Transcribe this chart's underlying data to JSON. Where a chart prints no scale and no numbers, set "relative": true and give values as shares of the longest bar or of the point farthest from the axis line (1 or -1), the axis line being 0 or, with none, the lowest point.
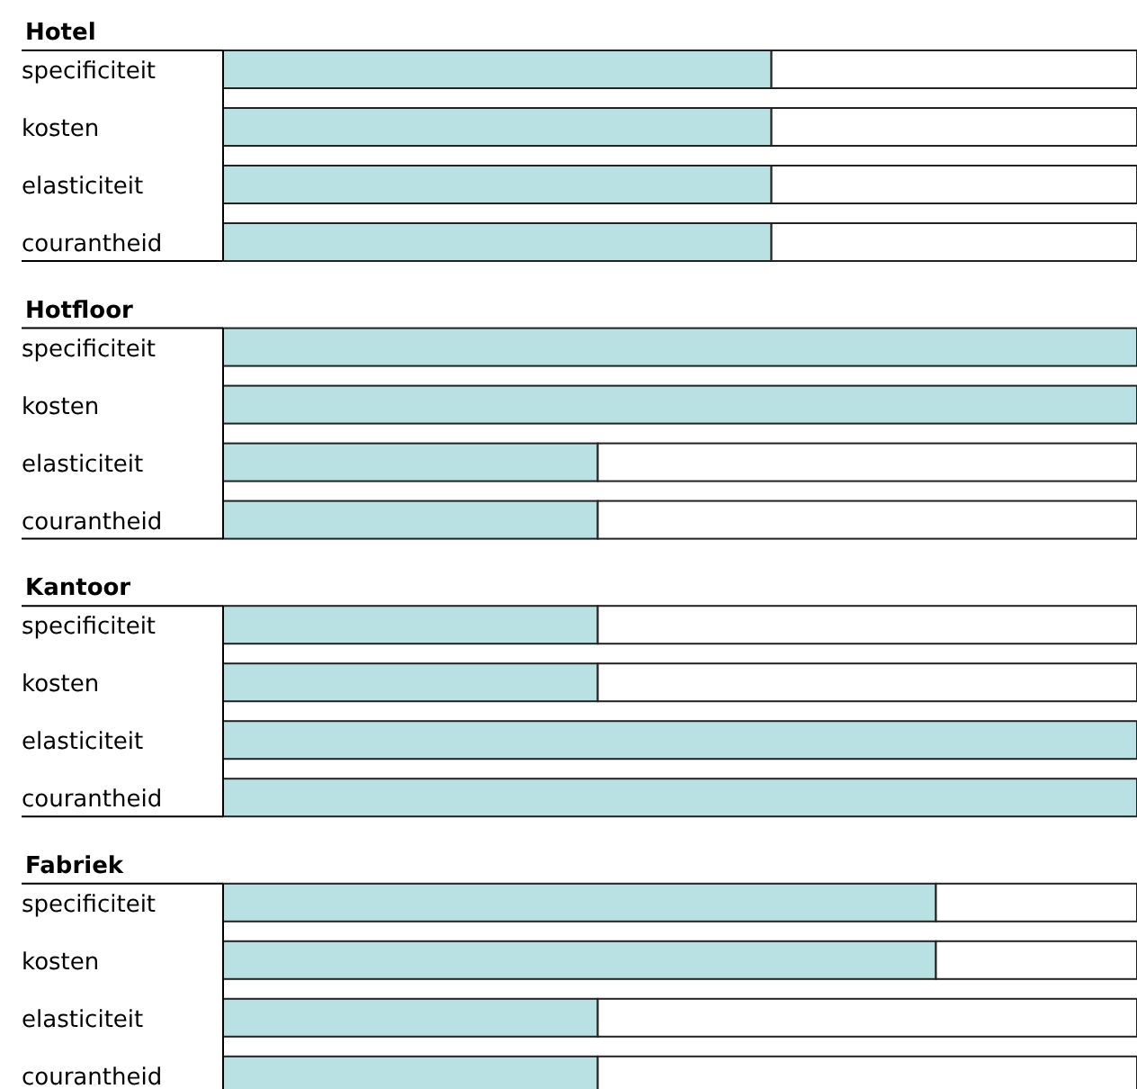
{
  "chart_data": [
    {
      "type": "bar",
      "orientation": "horizontal",
      "relative": true,
      "stacked": true,
      "title": "Hotel",
      "categories": [
        "specificiteit",
        "kosten",
        "elasticiteit",
        "courantheid"
      ],
      "series": [
        {
          "color": "#b9e0e3",
          "values": [
            0.6,
            0.6,
            0.6,
            0.6
          ]
        },
        {
          "color": "#ffffff",
          "values": [
            0.4,
            0.4,
            0.4,
            0.4
          ]
        }
      ]
    },
    {
      "type": "bar",
      "orientation": "horizontal",
      "relative": true,
      "stacked": true,
      "title": "Hotfloor",
      "categories": [
        "specificiteit",
        "kosten",
        "elasticiteit",
        "courantheid"
      ],
      "series": [
        {
          "color": "#b9e0e3",
          "values": [
            1,
            1,
            0.41,
            0.41
          ]
        },
        {
          "color": "#ffffff",
          "values": [
            null,
            null,
            0.59,
            0.59
          ]
        }
      ]
    },
    {
      "type": "bar",
      "orientation": "horizontal",
      "relative": true,
      "stacked": true,
      "title": "Kantoor",
      "categories": [
        "specificiteit",
        "kosten",
        "elasticiteit",
        "courantheid"
      ],
      "series": [
        {
          "color": "#b9e0e3",
          "values": [
            0.41,
            0.41,
            1,
            1
          ]
        },
        {
          "color": "#ffffff",
          "values": [
            0.59,
            0.59,
            null,
            null
          ]
        }
      ]
    },
    {
      "type": "bar",
      "orientation": "horizontal",
      "relative": true,
      "stacked": true,
      "title": "Fabriek",
      "categories": [
        "specificiteit",
        "kosten",
        "elasticiteit",
        "courantheid"
      ],
      "series": [
        {
          "color": "#b9e0e3",
          "values": [
            0.78,
            0.78,
            0.41,
            0.41
          ]
        },
        {
          "color": "#ffffff",
          "values": [
            0.22,
            0.22,
            0.59,
            0.59
          ]
        }
      ]
    }
  ]
}
